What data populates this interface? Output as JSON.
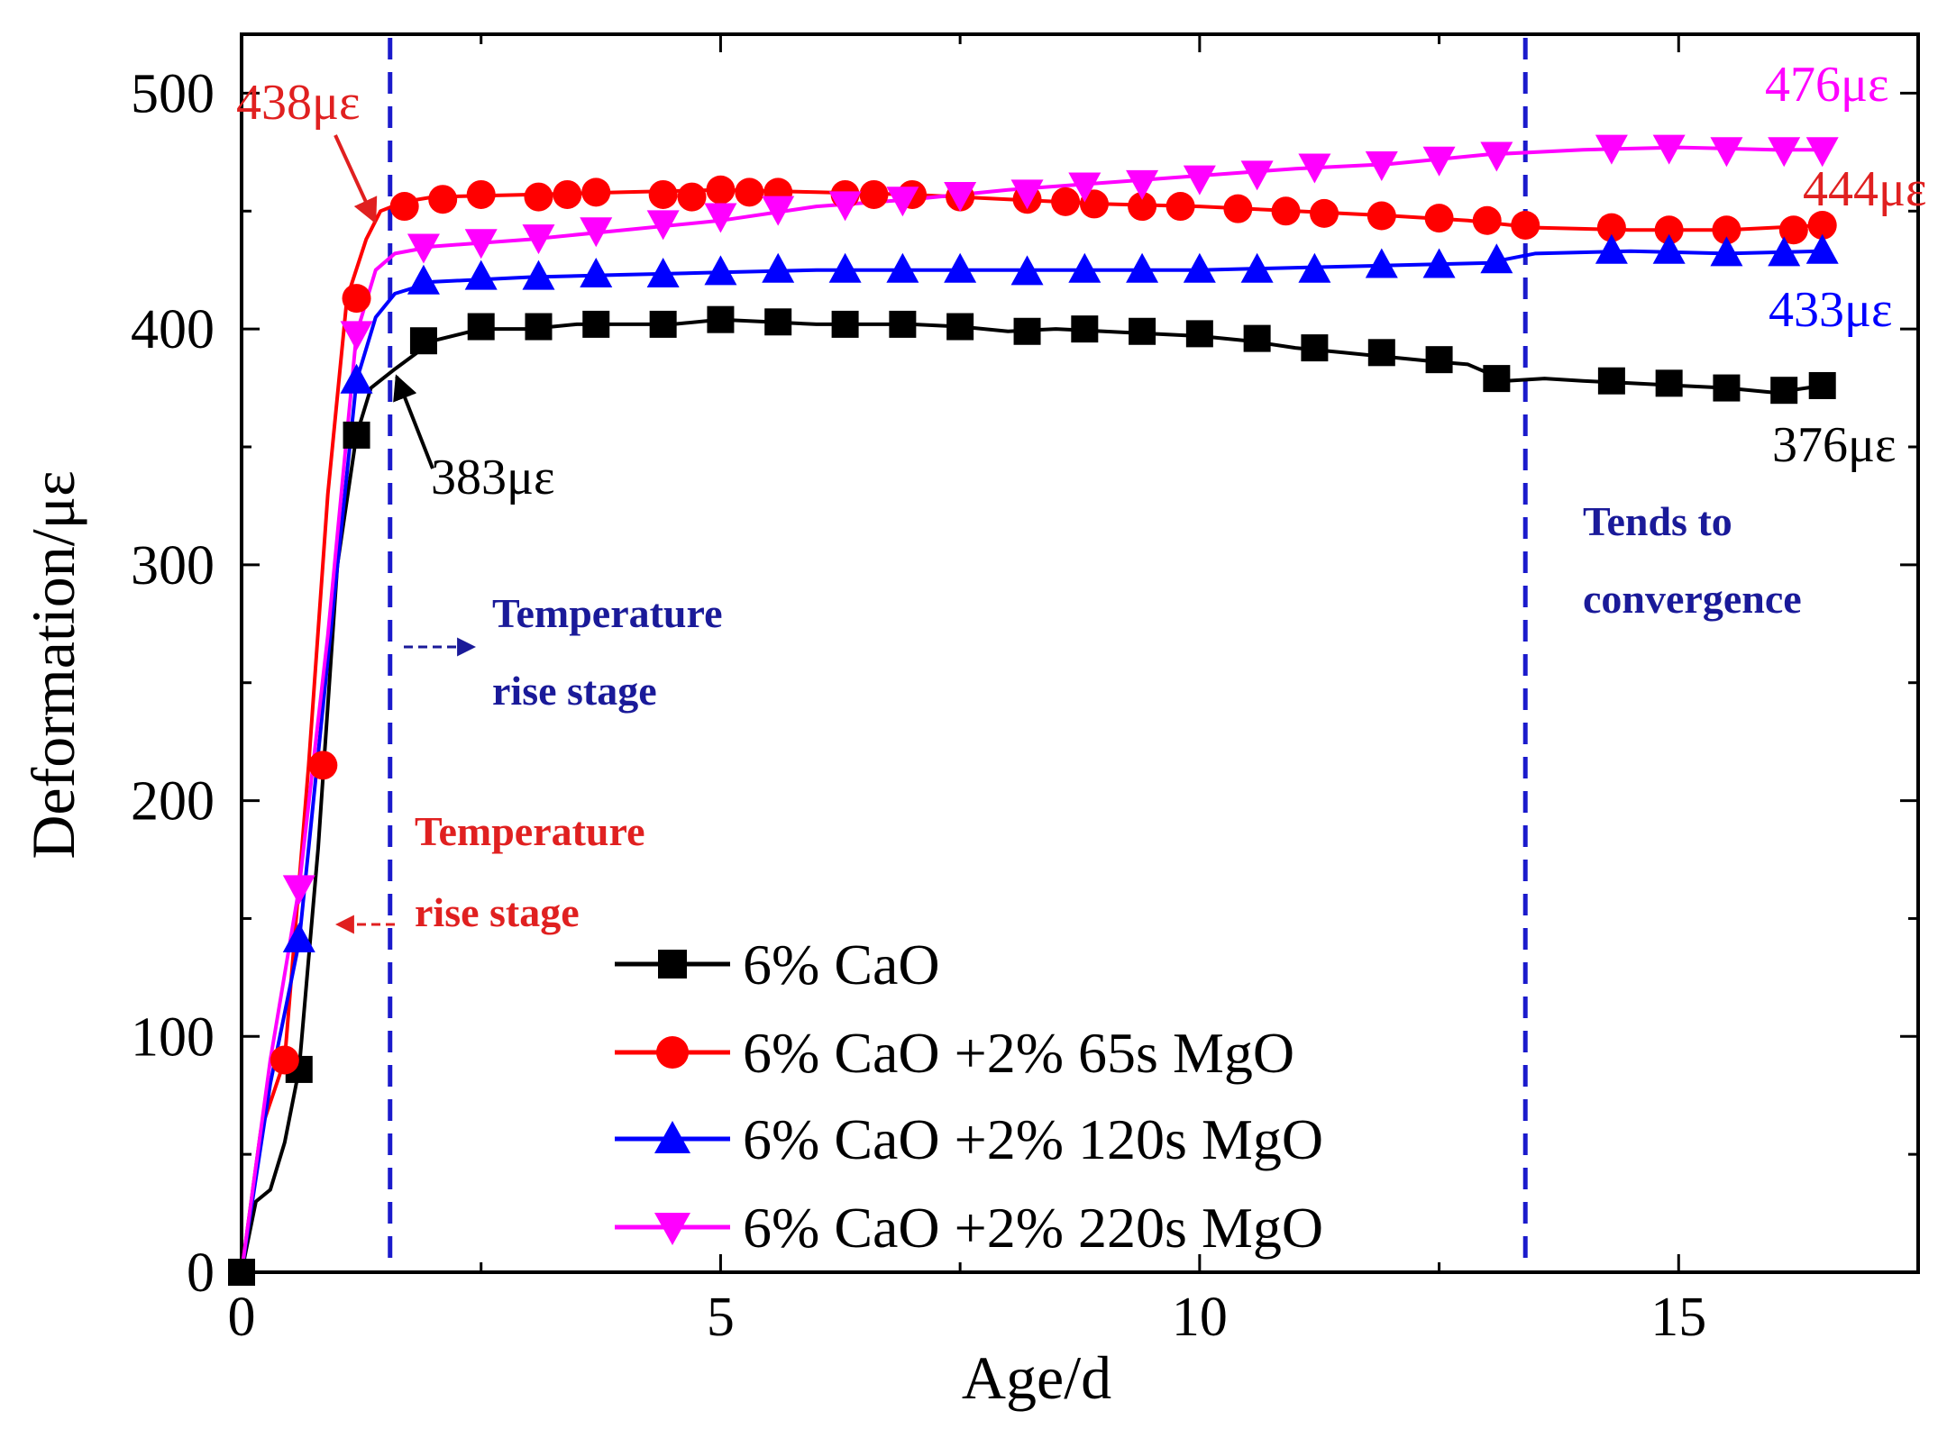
{
  "chart_data": {
    "type": "line",
    "xlabel": "Age/d",
    "ylabel": "Deformation/με",
    "xlim": [
      0,
      17.5
    ],
    "ylim": [
      0,
      525
    ],
    "xticks": [
      0,
      5,
      10,
      15
    ],
    "yticks": [
      0,
      100,
      200,
      300,
      400,
      500
    ],
    "grid": false,
    "legend_position": "bottom-center",
    "series": [
      {
        "name": "6% CaO",
        "color": "#000000",
        "marker": "square",
        "x": [
          0,
          0.15,
          0.3,
          0.45,
          0.6,
          0.8,
          1.0,
          1.2,
          1.35,
          1.6,
          2.0,
          2.5,
          3.0,
          3.5,
          4.0,
          4.5,
          5.0,
          5.5,
          6.0,
          6.5,
          7.0,
          7.5,
          8.0,
          8.5,
          9.0,
          9.5,
          10.0,
          10.5,
          11.0,
          11.5,
          12.0,
          12.5,
          12.8,
          13.2,
          13.6,
          14.0,
          14.5,
          15.0,
          15.5,
          16.0,
          16.5
        ],
        "y": [
          0,
          30,
          35,
          55,
          86,
          180,
          300,
          355,
          375,
          383,
          395,
          400,
          400,
          402,
          402,
          402,
          404,
          403,
          402,
          402,
          402,
          401,
          399,
          400,
          399,
          398,
          397,
          395,
          392,
          390,
          388,
          386,
          385,
          378,
          379,
          378,
          377,
          376,
          375,
          373,
          376
        ],
        "markers": [
          [
            0,
            0
          ],
          [
            0.6,
            86
          ],
          [
            1.2,
            355
          ],
          [
            1.9,
            395
          ],
          [
            2.5,
            401
          ],
          [
            3.1,
            401
          ],
          [
            3.7,
            402
          ],
          [
            4.4,
            402
          ],
          [
            5.0,
            404
          ],
          [
            5.6,
            403
          ],
          [
            6.3,
            402
          ],
          [
            6.9,
            402
          ],
          [
            7.5,
            401
          ],
          [
            8.2,
            399
          ],
          [
            8.8,
            400
          ],
          [
            9.4,
            399
          ],
          [
            10.0,
            398
          ],
          [
            10.6,
            396
          ],
          [
            11.2,
            392
          ],
          [
            11.9,
            390
          ],
          [
            12.5,
            387
          ],
          [
            13.1,
            379
          ],
          [
            14.3,
            378
          ],
          [
            14.9,
            377
          ],
          [
            15.5,
            375
          ],
          [
            16.1,
            374
          ],
          [
            16.5,
            376
          ]
        ]
      },
      {
        "name": "6% CaO +2% 65s MgO",
        "color": "#ff0000",
        "marker": "circle",
        "x": [
          0,
          0.2,
          0.45,
          0.7,
          0.9,
          1.1,
          1.3,
          1.45,
          1.7,
          2.0,
          3.0,
          4.0,
          5.0,
          6.0,
          7.0,
          8.0,
          9.0,
          10.0,
          11.0,
          12.0,
          12.8,
          13.5,
          14.5,
          15.5,
          16.5
        ],
        "y": [
          0,
          60,
          90,
          215,
          330,
          413,
          438,
          450,
          454,
          456,
          457,
          458,
          459,
          458,
          457,
          455,
          453,
          452,
          450,
          448,
          446,
          443,
          442,
          442,
          444
        ],
        "markers": [
          [
            0.45,
            90
          ],
          [
            0.85,
            215
          ],
          [
            1.2,
            413
          ],
          [
            1.7,
            452
          ],
          [
            2.1,
            455
          ],
          [
            2.5,
            457
          ],
          [
            3.1,
            456
          ],
          [
            3.4,
            457
          ],
          [
            3.7,
            458
          ],
          [
            4.4,
            457
          ],
          [
            4.7,
            456
          ],
          [
            5.0,
            459
          ],
          [
            5.3,
            458
          ],
          [
            5.6,
            458
          ],
          [
            6.3,
            457
          ],
          [
            6.6,
            457
          ],
          [
            7.0,
            457
          ],
          [
            7.5,
            456
          ],
          [
            8.2,
            455
          ],
          [
            8.6,
            454
          ],
          [
            8.9,
            453
          ],
          [
            9.4,
            452
          ],
          [
            9.8,
            452
          ],
          [
            10.4,
            451
          ],
          [
            10.9,
            450
          ],
          [
            11.3,
            449
          ],
          [
            11.9,
            448
          ],
          [
            12.5,
            447
          ],
          [
            13.0,
            446
          ],
          [
            13.4,
            444
          ],
          [
            14.3,
            443
          ],
          [
            14.9,
            442
          ],
          [
            15.5,
            442
          ],
          [
            16.2,
            442
          ],
          [
            16.5,
            444
          ]
        ]
      },
      {
        "name": "6% CaO +2% 120s MgO",
        "color": "#0000ff",
        "marker": "triangle-up",
        "x": [
          0,
          0.3,
          0.6,
          0.9,
          1.2,
          1.4,
          1.6,
          2.0,
          3.0,
          4.0,
          5.0,
          6.0,
          7.0,
          8.0,
          9.0,
          10.0,
          11.0,
          12.0,
          13.0,
          13.5,
          14.5,
          15.5,
          16.5
        ],
        "y": [
          0,
          80,
          140,
          260,
          378,
          405,
          415,
          420,
          422,
          423,
          424,
          425,
          425,
          425,
          425,
          425,
          426,
          427,
          428,
          432,
          433,
          432,
          433
        ],
        "markers": [
          [
            0.6,
            141
          ],
          [
            1.2,
            378
          ],
          [
            1.9,
            420
          ],
          [
            2.5,
            422
          ],
          [
            3.1,
            422
          ],
          [
            3.7,
            423
          ],
          [
            4.4,
            423
          ],
          [
            5.0,
            424
          ],
          [
            5.6,
            425
          ],
          [
            6.3,
            425
          ],
          [
            6.9,
            425
          ],
          [
            7.5,
            425
          ],
          [
            8.2,
            424
          ],
          [
            8.8,
            425
          ],
          [
            9.4,
            425
          ],
          [
            10.0,
            425
          ],
          [
            10.6,
            425
          ],
          [
            11.2,
            425
          ],
          [
            11.9,
            427
          ],
          [
            12.5,
            427
          ],
          [
            13.1,
            429
          ],
          [
            14.3,
            433
          ],
          [
            14.9,
            433
          ],
          [
            15.5,
            432
          ],
          [
            16.1,
            432
          ],
          [
            16.5,
            433
          ]
        ]
      },
      {
        "name": "6% CaO +2% 220s MgO",
        "color": "#ff00ff",
        "marker": "triangle-down",
        "x": [
          0,
          0.3,
          0.6,
          0.9,
          1.2,
          1.4,
          1.6,
          2.0,
          3.0,
          4.0,
          5.0,
          6.0,
          7.0,
          8.0,
          9.0,
          10.0,
          11.0,
          12.0,
          13.0,
          14.0,
          15.0,
          16.0,
          16.5
        ],
        "y": [
          0,
          90,
          163,
          270,
          398,
          425,
          432,
          435,
          438,
          442,
          446,
          452,
          455,
          459,
          462,
          465,
          468,
          470,
          474,
          476,
          477,
          476,
          476
        ],
        "markers": [
          [
            0.6,
            163
          ],
          [
            1.2,
            398
          ],
          [
            1.9,
            435
          ],
          [
            2.5,
            437
          ],
          [
            3.1,
            439
          ],
          [
            3.7,
            442
          ],
          [
            4.4,
            445
          ],
          [
            5.0,
            448
          ],
          [
            5.6,
            451
          ],
          [
            6.3,
            453
          ],
          [
            6.9,
            455
          ],
          [
            7.5,
            457
          ],
          [
            8.2,
            458
          ],
          [
            8.8,
            461
          ],
          [
            9.4,
            462
          ],
          [
            10.0,
            464
          ],
          [
            10.6,
            466
          ],
          [
            11.2,
            469
          ],
          [
            11.9,
            470
          ],
          [
            12.5,
            472
          ],
          [
            13.1,
            474
          ],
          [
            14.3,
            477
          ],
          [
            14.9,
            477
          ],
          [
            15.5,
            476
          ],
          [
            16.1,
            476
          ],
          [
            16.5,
            476
          ]
        ]
      }
    ],
    "vlines": [
      {
        "x": 1.55,
        "color": "#1a1acc"
      },
      {
        "x": 13.4,
        "color": "#1a1acc"
      }
    ],
    "annotations": {
      "label_438": {
        "text": "438με",
        "color": "#e02020"
      },
      "label_383": {
        "text": "383με",
        "color": "#000000"
      },
      "label_476": {
        "text": "476με",
        "color": "#ff00ff"
      },
      "label_444": {
        "text": "444με",
        "color": "#e02020"
      },
      "label_433": {
        "text": "433με",
        "color": "#0000ff"
      },
      "label_376": {
        "text": "376με",
        "color": "#000000"
      },
      "stage_blue_line1": {
        "text": "Temperature",
        "color": "#1a1a99"
      },
      "stage_blue_line2": {
        "text": "rise stage",
        "color": "#1a1a99"
      },
      "stage_red_line1": {
        "text": "Temperature",
        "color": "#e02020"
      },
      "stage_red_line2": {
        "text": "rise stage",
        "color": "#e02020"
      },
      "converge_line1": {
        "text": "Tends to",
        "color": "#1a1a99"
      },
      "converge_line2": {
        "text": "convergence",
        "color": "#1a1a99"
      }
    }
  }
}
